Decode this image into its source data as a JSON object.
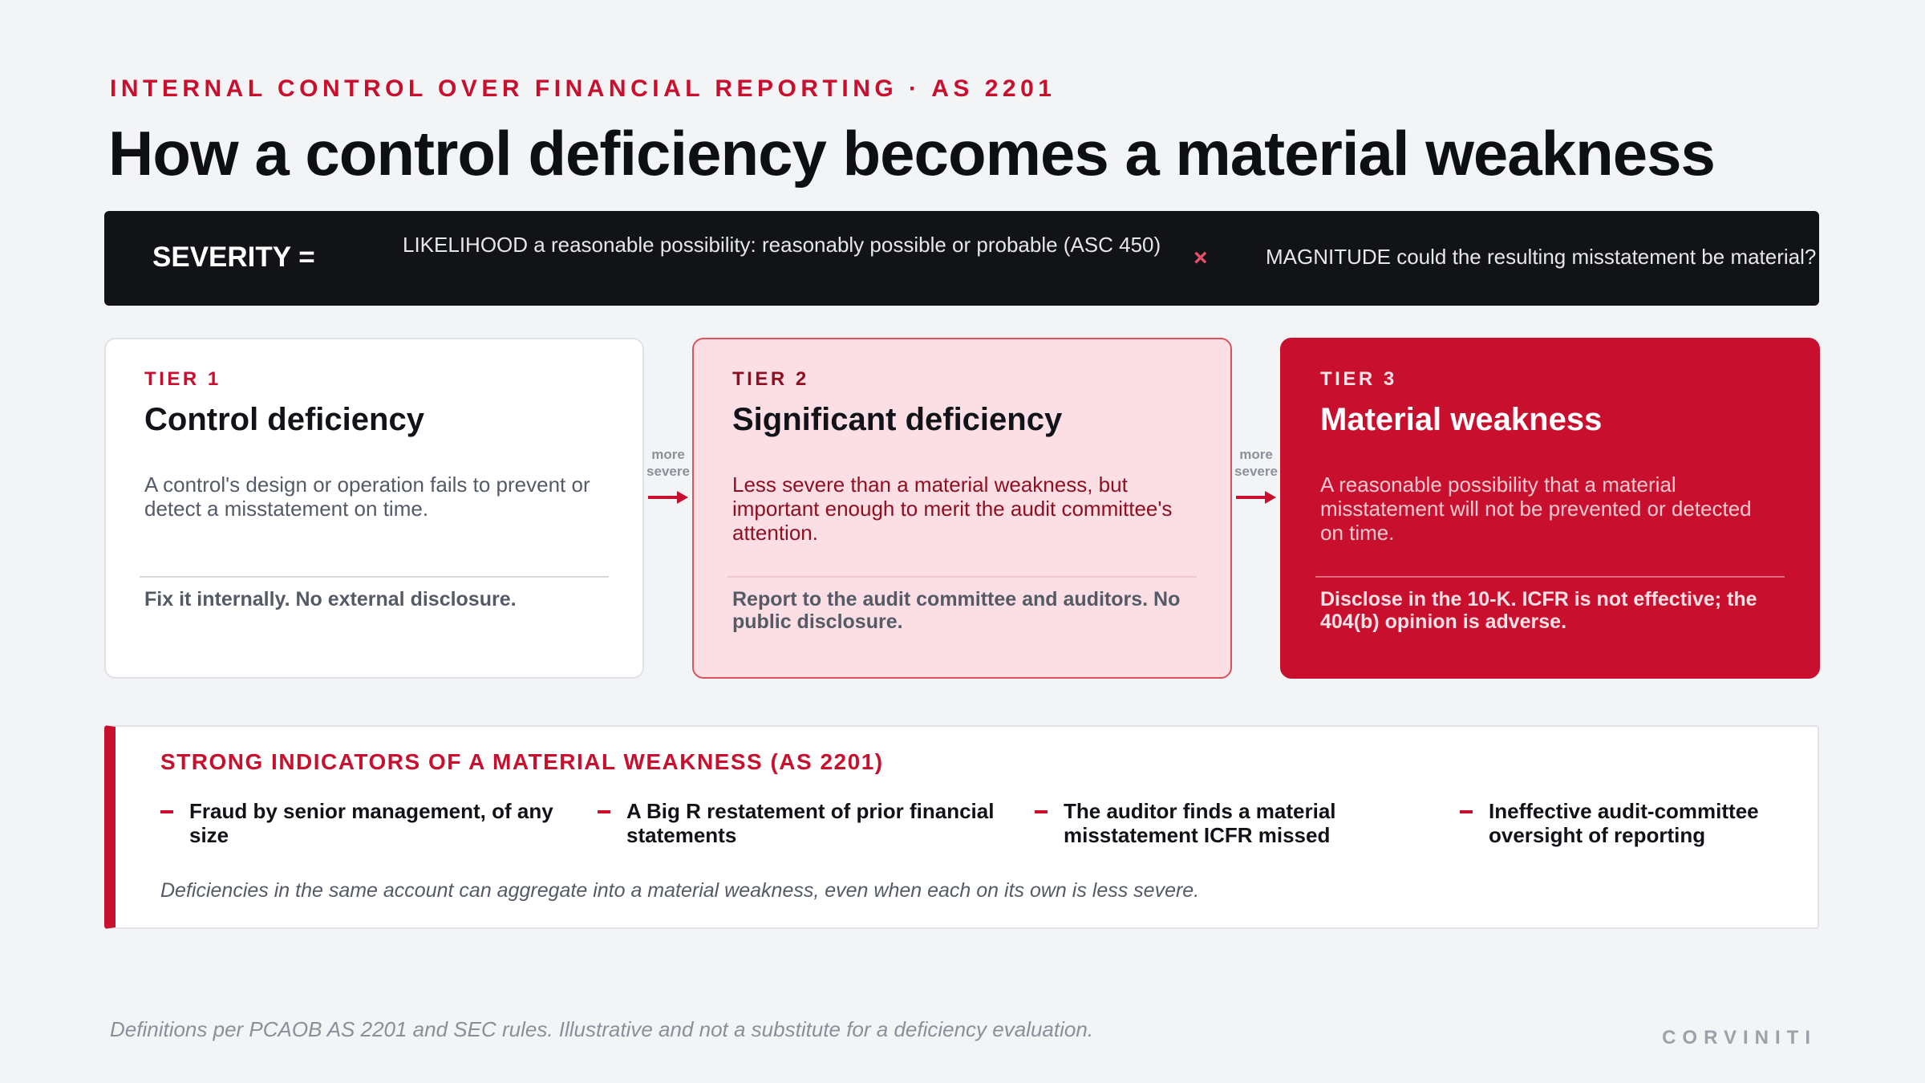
{
  "header": {
    "eyebrow": "INTERNAL CONTROL OVER FINANCIAL REPORTING · AS 2201",
    "title": "How a control deficiency becomes a material weakness"
  },
  "formula": {
    "severity_label": "SEVERITY =",
    "likelihood": "LIKELIHOOD a reasonable possibility: reasonably possible or probable (ASC 450)",
    "operator": "×",
    "magnitude": "MAGNITUDE could the resulting misstatement be material?"
  },
  "connector": {
    "label_line1": "more",
    "label_line2": "severe"
  },
  "tiers": [
    {
      "tag": "TIER 1",
      "name": "Control deficiency",
      "description": "A control's design or operation fails to prevent or detect a misstatement on time.",
      "consequence": "Fix it internally. No external disclosure."
    },
    {
      "tag": "TIER 2",
      "name": "Significant deficiency",
      "description": "Less severe than a material weakness, but important enough to merit the audit committee's attention.",
      "consequence": "Report to the audit committee and auditors. No public disclosure."
    },
    {
      "tag": "TIER 3",
      "name": "Material weakness",
      "description": "A reasonable possibility that a material misstatement will not be prevented or detected on time.",
      "consequence": "Disclose in the 10-K. ICFR is not effective; the 404(b) opinion is adverse."
    }
  ],
  "indicators": {
    "title": "STRONG INDICATORS OF A MATERIAL WEAKNESS (AS 2201)",
    "items": [
      "Fraud by senior management, of any size",
      "A Big R restatement of prior financial statements",
      "The auditor finds a material misstatement ICFR missed",
      "Ineffective audit-committee oversight of reporting"
    ],
    "note": "Deficiencies in the same account can aggregate into a material weakness, even when each on its own is less severe."
  },
  "footer": {
    "footnote": "Definitions per PCAOB AS 2201 and SEC rules. Illustrative and not a substitute for a deficiency evaluation.",
    "brand": "CORVINITI"
  },
  "colors": {
    "accent": "#c8102e",
    "dark_band": "#121317",
    "tier2_bg": "#fbdfe4",
    "background": "#f3f4f6"
  }
}
